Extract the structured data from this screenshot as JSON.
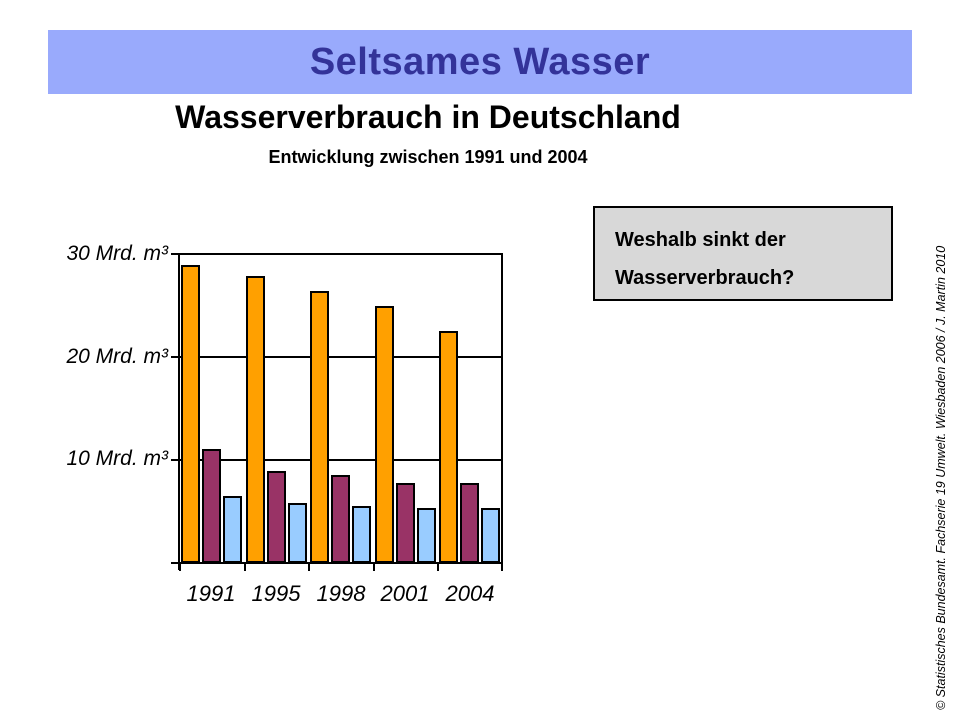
{
  "slide": {
    "banner": {
      "title": "Seltsames Wasser",
      "bg_color": "#99AAFC",
      "text_color": "#333399"
    },
    "heading": "Wasserverbrauch in Deutschland",
    "subheading": "Entwicklung zwischen 1991 und 2004",
    "question_box": {
      "line1": "Weshalb sinkt der",
      "line2": "Wasserverbrauch?",
      "bg_color": "#D8D8D8"
    },
    "copyright": "© Statistisches Bundesamt. Fachserie 19 Umwelt. Wiesbaden 2006 / J. Martin 2010"
  },
  "chart_data": {
    "type": "bar",
    "title": "Wasserverbrauch in Deutschland",
    "subtitle": "Entwicklung zwischen 1991 und 2004",
    "categories": [
      "1991",
      "1995",
      "1998",
      "2001",
      "2004"
    ],
    "series": [
      {
        "key": "orange",
        "color": "#FFA000",
        "values": [
          28.8,
          27.8,
          26.3,
          24.9,
          22.5
        ]
      },
      {
        "key": "purple",
        "color": "#993366",
        "values": [
          11.0,
          8.9,
          8.5,
          7.7,
          7.7
        ]
      },
      {
        "key": "lightblue",
        "color": "#99CCFF",
        "values": [
          6.5,
          5.8,
          5.5,
          5.3,
          5.3
        ]
      }
    ],
    "unit": "Mrd. m³",
    "ylim": [
      0,
      30
    ],
    "y_ticks": [
      {
        "value": 30,
        "label": "30 Mrd. m³"
      },
      {
        "value": 20,
        "label": "20 Mrd. m³"
      },
      {
        "value": 10,
        "label": "10 Mrd. m³"
      }
    ],
    "grid": true,
    "legend": "none"
  }
}
